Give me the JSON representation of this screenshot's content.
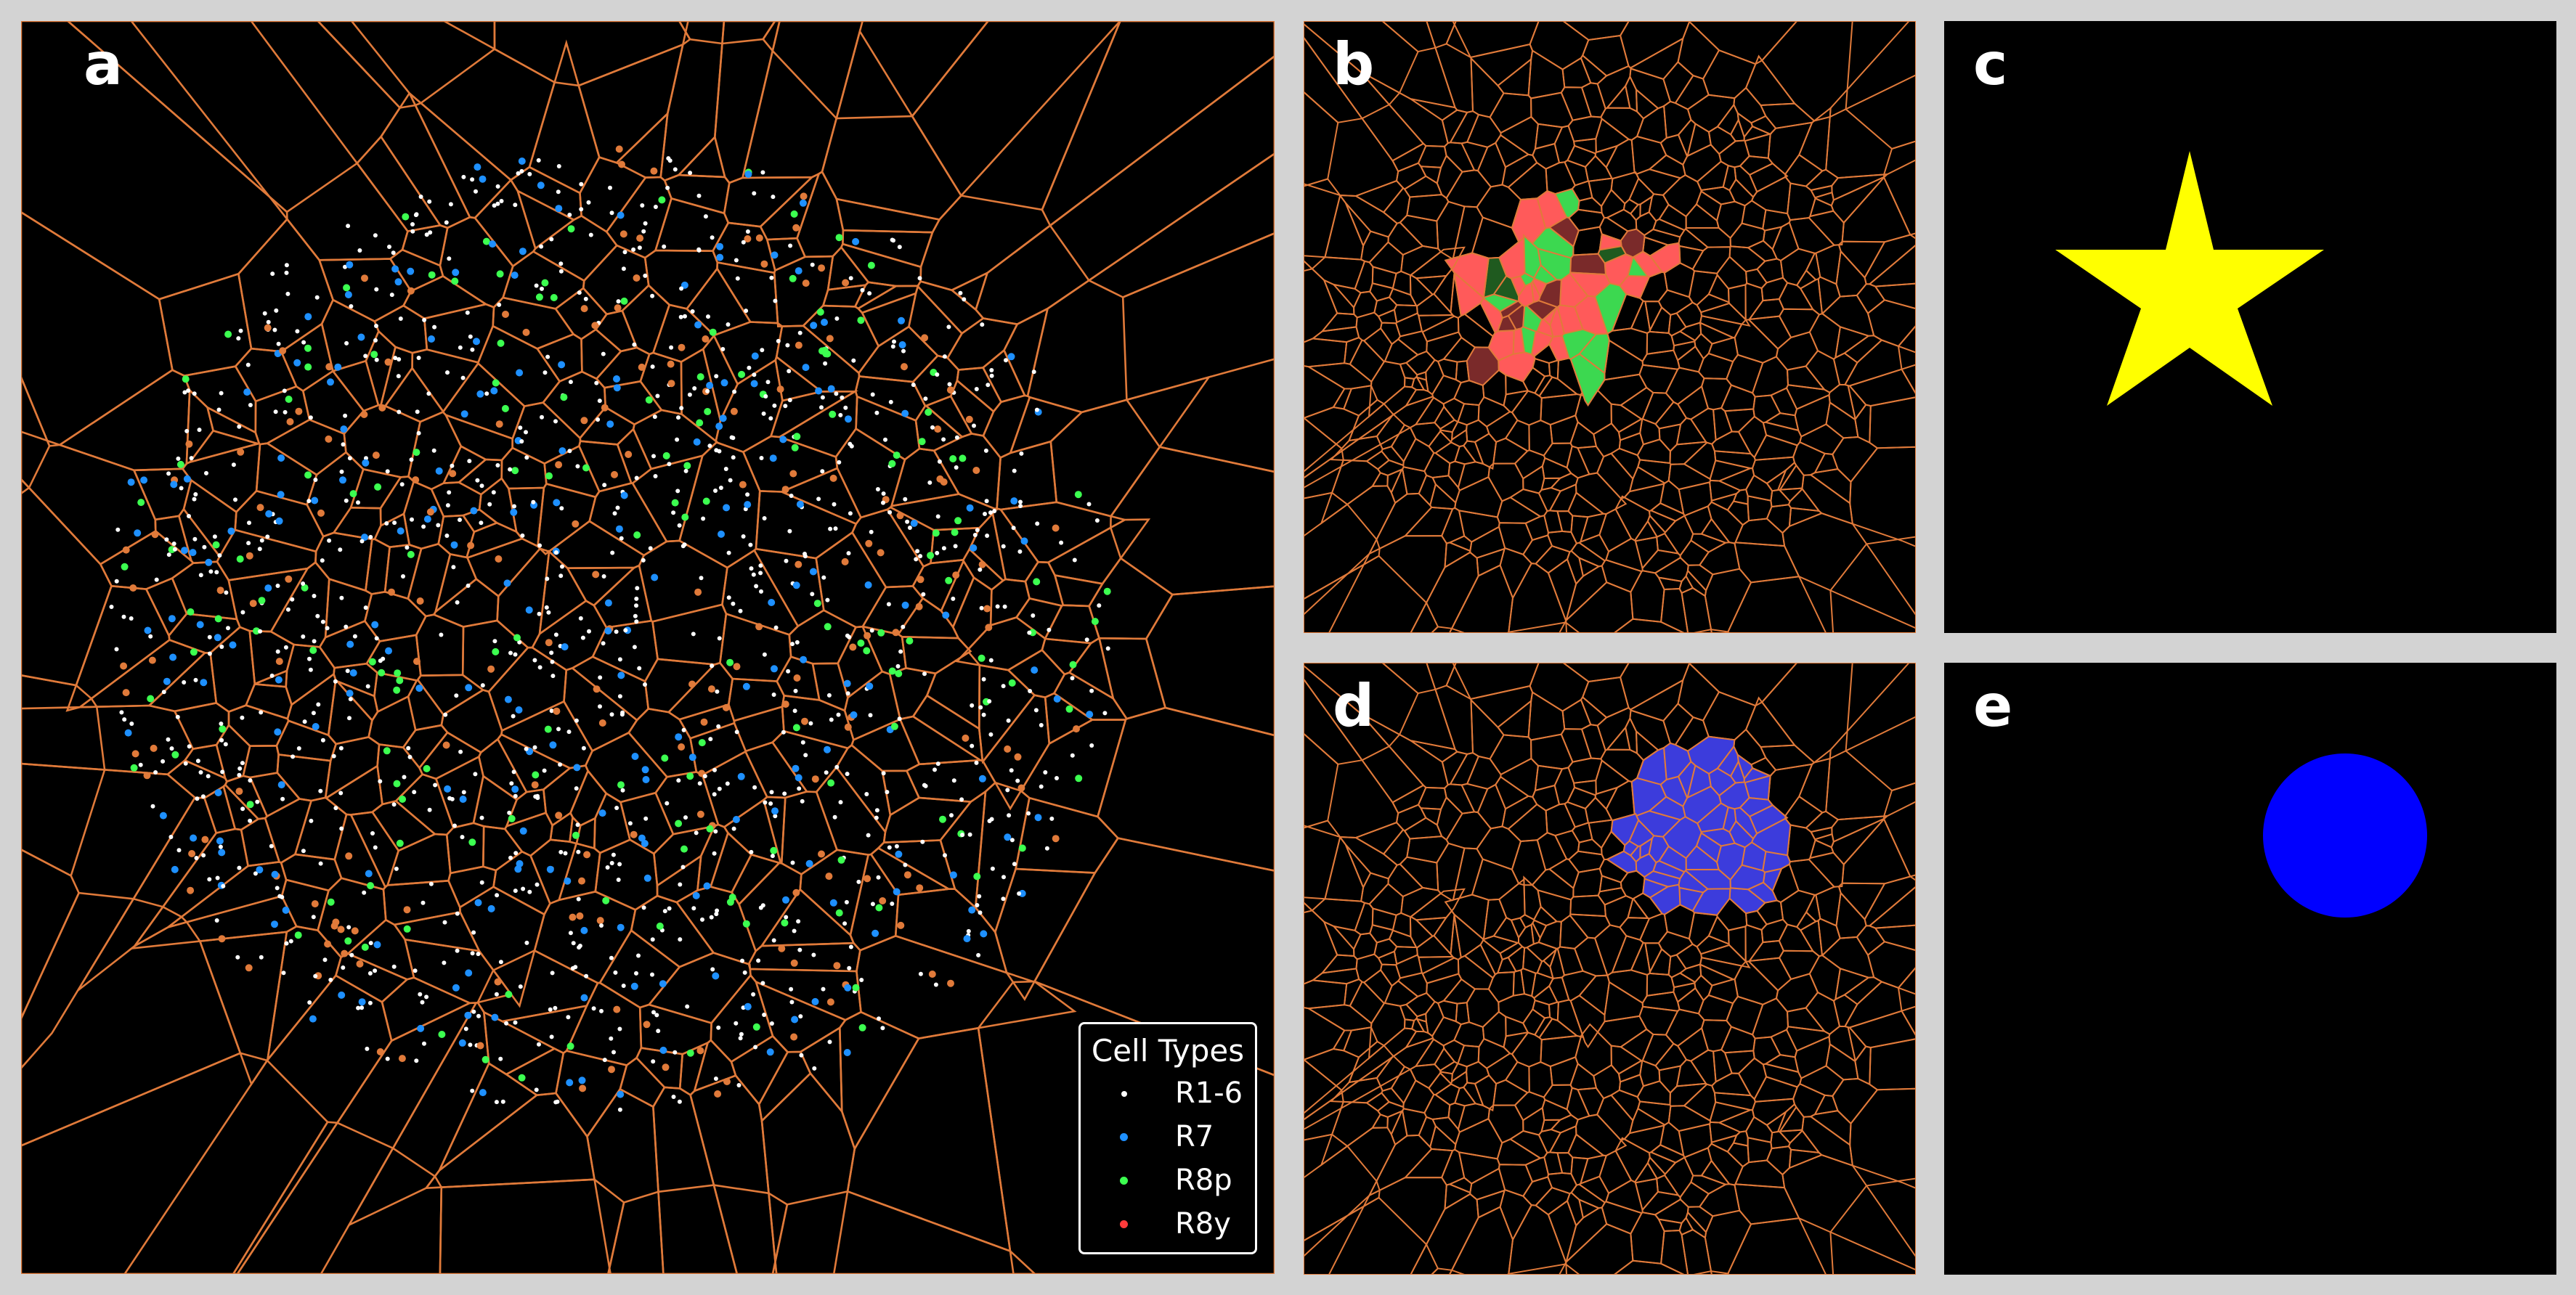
{
  "figure": {
    "panels": [
      {
        "id": "a",
        "label": "a"
      },
      {
        "id": "b",
        "label": "b"
      },
      {
        "id": "c",
        "label": "c"
      },
      {
        "id": "d",
        "label": "d"
      },
      {
        "id": "e",
        "label": "e"
      }
    ]
  },
  "legend": {
    "title": "Cell Types",
    "items": [
      {
        "label": "R1-6",
        "color": "#ffffff"
      },
      {
        "label": "R7",
        "color": "#1e90ff"
      },
      {
        "label": "R8p",
        "color": "#3cff50"
      },
      {
        "label": "R8y",
        "color": "#ff3b3b"
      }
    ]
  },
  "colors": {
    "background": "#d3d3d3",
    "panel": "#000000",
    "voronoi_edges": "#e07a3a",
    "star_fill": "#ffff00",
    "circle_fill": "#0000ff",
    "star_overlay_red": "#ff5a5a",
    "star_overlay_green": "#3cd850",
    "circle_overlay": "#3c3cdc"
  },
  "shapes": {
    "panel_c": {
      "shape": "star",
      "icon": "star-icon"
    },
    "panel_e": {
      "shape": "circle",
      "icon": "circle-icon"
    }
  }
}
